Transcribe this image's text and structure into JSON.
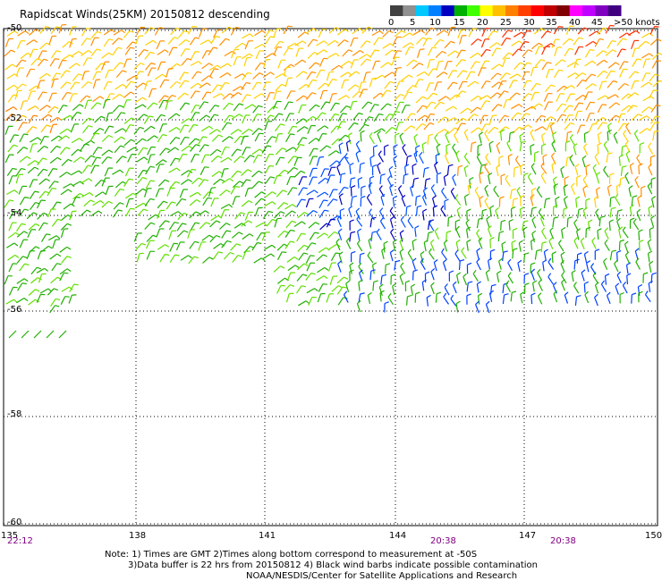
{
  "title": "Rapidscat Winds(25KM) 20150812 descending",
  "legend": {
    "labels": [
      "0",
      "5",
      "10",
      "15",
      "20",
      "25",
      "30",
      "35",
      "40",
      "45"
    ],
    "last_label": ">50 knots",
    "colors": [
      "#404040",
      "#909090",
      "#00c8ff",
      "#0080ff",
      "#0000c0",
      "#00b000",
      "#40ff00",
      "#ffff00",
      "#ffc000",
      "#ff8000",
      "#ff4000",
      "#ff0000",
      "#c00000",
      "#800000",
      "#ff00ff",
      "#c000ff",
      "#8000c0",
      "#400080"
    ]
  },
  "lat_labels": [
    "-50",
    "-52",
    "-54",
    "-56",
    "-58",
    "-60"
  ],
  "lon_labels": [
    "135",
    "138",
    "141",
    "144",
    "147",
    "150"
  ],
  "time_labels": [
    "22:12",
    "20:38",
    "20:38"
  ],
  "notes": [
    "Note: 1) Times are GMT 2)Times along bottom correspond to measurement at -50S",
    "3)Data buffer is 22 hrs from 20150812 4) Black wind barbs indicate possible contamination",
    "NOAA/NESDIS/Center for Satellite Applications and Research"
  ]
}
